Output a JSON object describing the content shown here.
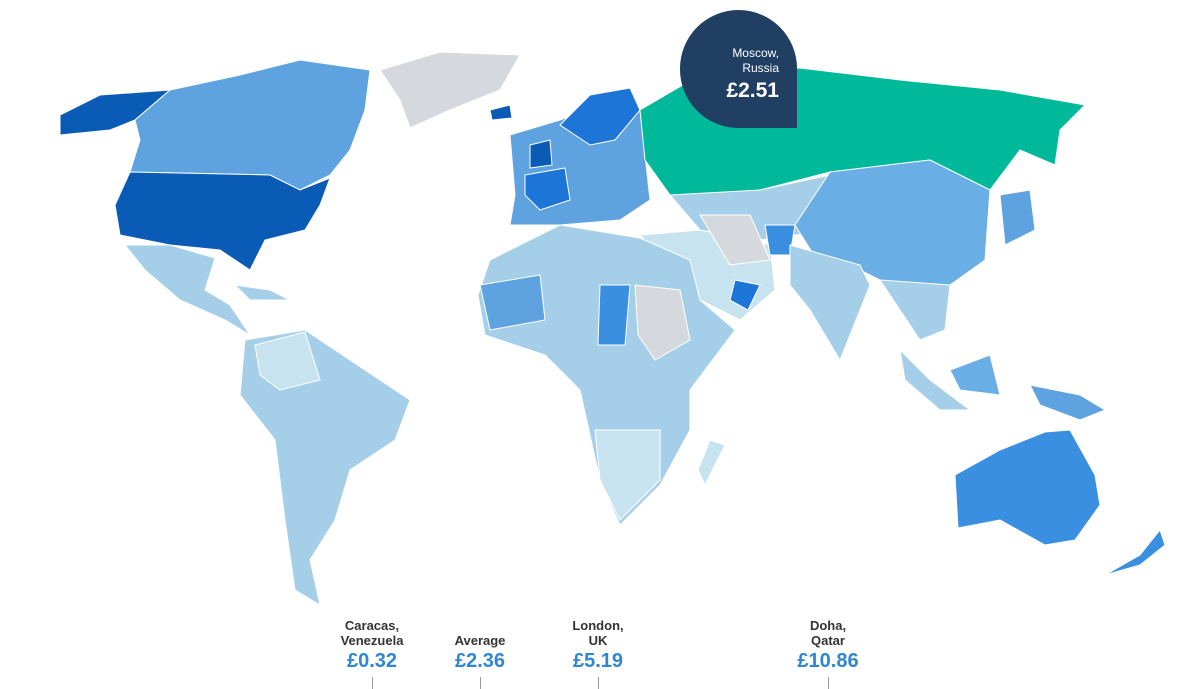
{
  "map": {
    "tooltip": {
      "place": "Moscow,\nRussia",
      "price": "£2.51"
    },
    "scale": [
      {
        "place": "Caracas,\nVenezuela",
        "price": "£0.32"
      },
      {
        "place": "Average",
        "price": "£2.36"
      },
      {
        "place": "London,\nUK",
        "price": "£5.19"
      },
      {
        "place": "Doha,\nQatar",
        "price": "£10.86"
      }
    ]
  }
}
